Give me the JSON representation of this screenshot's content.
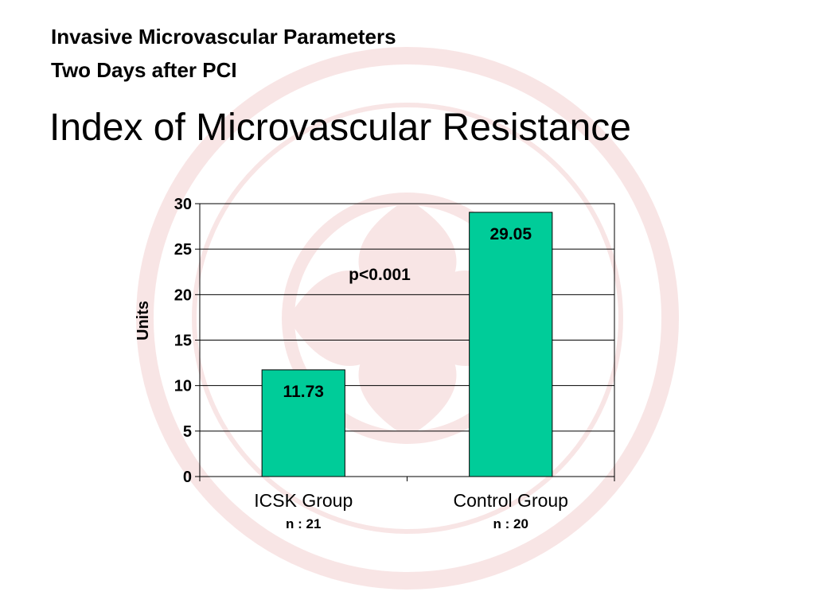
{
  "slide": {
    "subtitle_line1": "Invasive Microvascular Parameters",
    "subtitle_line2": "Two Days after PCI",
    "title": "Index of Microvascular Resistance"
  },
  "chart_data": {
    "type": "bar",
    "categories": [
      "ICSK Group",
      "Control Group"
    ],
    "category_sublabels": [
      "n : 21",
      "n : 20"
    ],
    "values": [
      11.73,
      29.05
    ],
    "data_labels": [
      "11.73",
      "29.05"
    ],
    "ylabel": "Units",
    "ylim": [
      0,
      30
    ],
    "yticks": [
      0,
      5,
      10,
      15,
      20,
      25,
      30
    ],
    "annotation": "p<0.001",
    "grid": true,
    "bar_color": "#00CC99"
  }
}
